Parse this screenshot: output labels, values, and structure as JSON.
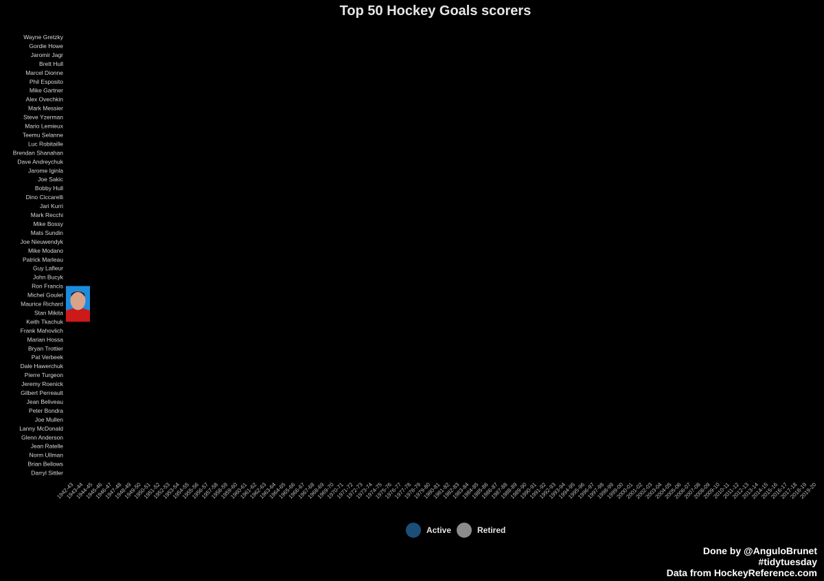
{
  "chart_data": {
    "type": "bar",
    "title": "Top 50 Hockey Goals scorers",
    "players": [
      "Wayne Gretzky",
      "Gordie Howe",
      "Jaromir Jagr",
      "Brett Hull",
      "Marcel Dionne",
      "Phil Esposito",
      "Mike Gartner",
      "Alex Ovechkin",
      "Mark Messier",
      "Steve Yzerman",
      "Mario Lemieux",
      "Teemu Selanne",
      "Luc Robitaille",
      "Brendan Shanahan",
      "Dave Andreychuk",
      "Jarome Iginla",
      "Joe Sakic",
      "Bobby Hull",
      "Dino Ciccarelli",
      "Jari Kurri",
      "Mark Recchi",
      "Mike Bossy",
      "Mats Sundin",
      "Joe Nieuwendyk",
      "Mike Modano",
      "Patrick Marleau",
      "Guy Lafleur",
      "John Bucyk",
      "Ron Francis",
      "Michel Goulet",
      "Maurice Richard",
      "Stan Mikita",
      "Keith Tkachuk",
      "Frank Mahovlich",
      "Marian Hossa",
      "Bryan Trottier",
      "Pat Verbeek",
      "Dale Hawerchuk",
      "Pierre Turgeon",
      "Jeremy Roenick",
      "Gilbert Perreault",
      "Jean Beliveau",
      "Peter Bondra",
      "Joe Mullen",
      "Lanny McDonald",
      "Glenn Anderson",
      "Jean Ratelle",
      "Norm Ullman",
      "Brian Bellows",
      "Darryl Sittler"
    ],
    "seasons": [
      "1942-43",
      "1943-44",
      "1944-45",
      "1945-46",
      "1946-47",
      "1947-48",
      "1948-49",
      "1949-50",
      "1950-51",
      "1951-52",
      "1952-53",
      "1953-54",
      "1954-55",
      "1955-56",
      "1956-57",
      "1957-58",
      "1958-59",
      "1959-60",
      "1960-61",
      "1961-62",
      "1962-63",
      "1963-64",
      "1964-65",
      "1965-66",
      "1966-67",
      "1967-68",
      "1968-69",
      "1969-70",
      "1970-71",
      "1971-72",
      "1972-73",
      "1973-74",
      "1974-75",
      "1975-76",
      "1976-77",
      "1977-78",
      "1978-79",
      "1979-80",
      "1980-81",
      "1981-82",
      "1982-83",
      "1983-84",
      "1984-85",
      "1985-86",
      "1986-87",
      "1987-88",
      "1988-89",
      "1989-90",
      "1990-91",
      "1991-92",
      "1992-93",
      "1993-94",
      "1994-95",
      "1995-96",
      "1996-97",
      "1997-98",
      "1998-99",
      "1999-00",
      "2000-01",
      "2001-02",
      "2002-03",
      "2003-04",
      "2004-05",
      "2005-06",
      "2006-07",
      "2007-08",
      "2008-09",
      "2009-10",
      "2010-11",
      "2011-12",
      "2012-13",
      "2013-14",
      "2014-15",
      "2015-16",
      "2016-17",
      "2017-18",
      "2018-19",
      "2019-20"
    ],
    "current_season": "1942-43",
    "highlighted_player": "Stan Mikita",
    "legend": [
      {
        "label": "Active",
        "color": "#1b4f7a"
      },
      {
        "label": "Retired",
        "color": "#8c8c8c"
      }
    ],
    "colors": {
      "background": "#000000",
      "photo_background": "#1a8ce0",
      "photo_jersey": "#cc1a1a",
      "photo_skin": "#d9a38a"
    }
  },
  "caption": {
    "line1": "Done by  @AnguloBrunet",
    "line2": "#tidytuesday",
    "line3": "Data from  HockeyReference.com"
  }
}
